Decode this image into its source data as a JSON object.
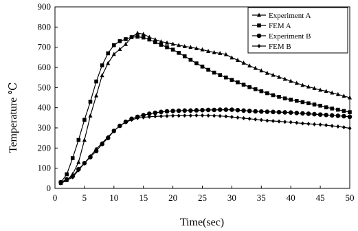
{
  "chart_data": {
    "type": "line",
    "title": "",
    "xlabel": "Time(sec)",
    "ylabel": "Temperature ℃",
    "xlim": [
      0,
      50
    ],
    "ylim": [
      0,
      900
    ],
    "xticks": [
      0,
      5,
      10,
      15,
      20,
      25,
      30,
      35,
      40,
      45,
      50
    ],
    "yticks": [
      0,
      100,
      200,
      300,
      400,
      500,
      600,
      700,
      800,
      900
    ],
    "grid": false,
    "legend_position": "top-right",
    "series": [
      {
        "name": "Experiment A",
        "marker": "triangle",
        "color": "#000000",
        "points": [
          [
            1,
            25
          ],
          [
            2,
            40
          ],
          [
            3,
            70
          ],
          [
            4,
            130
          ],
          [
            5,
            240
          ],
          [
            6,
            360
          ],
          [
            7,
            460
          ],
          [
            8,
            560
          ],
          [
            9,
            620
          ],
          [
            10,
            665
          ],
          [
            11,
            690
          ],
          [
            12,
            715
          ],
          [
            13,
            750
          ],
          [
            14,
            770
          ],
          [
            15,
            765
          ],
          [
            16,
            750
          ],
          [
            17,
            738
          ],
          [
            18,
            728
          ],
          [
            19,
            722
          ],
          [
            20,
            716
          ],
          [
            21,
            710
          ],
          [
            22,
            704
          ],
          [
            23,
            700
          ],
          [
            24,
            694
          ],
          [
            25,
            688
          ],
          [
            26,
            680
          ],
          [
            27,
            674
          ],
          [
            28,
            670
          ],
          [
            29,
            664
          ],
          [
            30,
            648
          ],
          [
            31,
            636
          ],
          [
            32,
            622
          ],
          [
            33,
            608
          ],
          [
            34,
            596
          ],
          [
            35,
            584
          ],
          [
            36,
            572
          ],
          [
            37,
            562
          ],
          [
            38,
            552
          ],
          [
            39,
            542
          ],
          [
            40,
            532
          ],
          [
            41,
            522
          ],
          [
            42,
            512
          ],
          [
            43,
            504
          ],
          [
            44,
            496
          ],
          [
            45,
            488
          ],
          [
            46,
            482
          ],
          [
            47,
            474
          ],
          [
            48,
            466
          ],
          [
            49,
            458
          ],
          [
            50,
            450
          ]
        ]
      },
      {
        "name": "FEM A",
        "marker": "square",
        "color": "#000000",
        "points": [
          [
            1,
            30
          ],
          [
            2,
            70
          ],
          [
            3,
            150
          ],
          [
            4,
            240
          ],
          [
            5,
            340
          ],
          [
            6,
            430
          ],
          [
            7,
            530
          ],
          [
            8,
            610
          ],
          [
            9,
            670
          ],
          [
            10,
            710
          ],
          [
            11,
            730
          ],
          [
            12,
            740
          ],
          [
            13,
            750
          ],
          [
            14,
            752
          ],
          [
            15,
            748
          ],
          [
            16,
            738
          ],
          [
            17,
            725
          ],
          [
            18,
            712
          ],
          [
            19,
            700
          ],
          [
            20,
            688
          ],
          [
            21,
            672
          ],
          [
            22,
            655
          ],
          [
            23,
            638
          ],
          [
            24,
            620
          ],
          [
            25,
            604
          ],
          [
            26,
            588
          ],
          [
            27,
            574
          ],
          [
            28,
            562
          ],
          [
            29,
            550
          ],
          [
            30,
            538
          ],
          [
            31,
            526
          ],
          [
            32,
            514
          ],
          [
            33,
            502
          ],
          [
            34,
            492
          ],
          [
            35,
            482
          ],
          [
            36,
            472
          ],
          [
            37,
            462
          ],
          [
            38,
            454
          ],
          [
            39,
            446
          ],
          [
            40,
            440
          ],
          [
            41,
            434
          ],
          [
            42,
            428
          ],
          [
            43,
            422
          ],
          [
            44,
            416
          ],
          [
            45,
            410
          ],
          [
            46,
            402
          ],
          [
            47,
            396
          ],
          [
            48,
            390
          ],
          [
            49,
            384
          ],
          [
            50,
            378
          ]
        ]
      },
      {
        "name": "Experiment B",
        "marker": "circle",
        "color": "#000000",
        "points": [
          [
            1,
            30
          ],
          [
            2,
            45
          ],
          [
            3,
            60
          ],
          [
            4,
            95
          ],
          [
            5,
            125
          ],
          [
            6,
            155
          ],
          [
            7,
            185
          ],
          [
            8,
            220
          ],
          [
            9,
            250
          ],
          [
            10,
            285
          ],
          [
            11,
            310
          ],
          [
            12,
            330
          ],
          [
            13,
            345
          ],
          [
            14,
            355
          ],
          [
            15,
            363
          ],
          [
            16,
            370
          ],
          [
            17,
            375
          ],
          [
            18,
            379
          ],
          [
            19,
            382
          ],
          [
            20,
            384
          ],
          [
            21,
            385
          ],
          [
            22,
            386
          ],
          [
            23,
            386
          ],
          [
            24,
            387
          ],
          [
            25,
            388
          ],
          [
            26,
            389
          ],
          [
            27,
            389
          ],
          [
            28,
            390
          ],
          [
            29,
            390
          ],
          [
            30,
            390
          ],
          [
            31,
            388
          ],
          [
            32,
            386
          ],
          [
            33,
            384
          ],
          [
            34,
            382
          ],
          [
            35,
            381
          ],
          [
            36,
            380
          ],
          [
            37,
            379
          ],
          [
            38,
            378
          ],
          [
            39,
            377
          ],
          [
            40,
            376
          ],
          [
            41,
            374
          ],
          [
            42,
            372
          ],
          [
            43,
            370
          ],
          [
            44,
            368
          ],
          [
            45,
            366
          ],
          [
            46,
            364
          ],
          [
            47,
            362
          ],
          [
            48,
            360
          ],
          [
            49,
            358
          ],
          [
            50,
            355
          ]
        ]
      },
      {
        "name": "FEM B",
        "marker": "diamond",
        "color": "#000000",
        "points": [
          [
            1,
            25
          ],
          [
            2,
            40
          ],
          [
            3,
            55
          ],
          [
            4,
            90
          ],
          [
            5,
            125
          ],
          [
            6,
            160
          ],
          [
            7,
            195
          ],
          [
            8,
            225
          ],
          [
            9,
            255
          ],
          [
            10,
            285
          ],
          [
            11,
            310
          ],
          [
            12,
            328
          ],
          [
            13,
            340
          ],
          [
            14,
            348
          ],
          [
            15,
            352
          ],
          [
            16,
            355
          ],
          [
            17,
            357
          ],
          [
            18,
            358
          ],
          [
            19,
            359
          ],
          [
            20,
            360
          ],
          [
            21,
            360
          ],
          [
            22,
            361
          ],
          [
            23,
            361
          ],
          [
            24,
            362
          ],
          [
            25,
            362
          ],
          [
            26,
            361
          ],
          [
            27,
            360
          ],
          [
            28,
            359
          ],
          [
            29,
            357
          ],
          [
            30,
            354
          ],
          [
            31,
            351
          ],
          [
            32,
            348
          ],
          [
            33,
            345
          ],
          [
            34,
            342
          ],
          [
            35,
            339
          ],
          [
            36,
            336
          ],
          [
            37,
            334
          ],
          [
            38,
            332
          ],
          [
            39,
            330
          ],
          [
            40,
            328
          ],
          [
            41,
            325
          ],
          [
            42,
            322
          ],
          [
            43,
            320
          ],
          [
            44,
            318
          ],
          [
            45,
            316
          ],
          [
            46,
            313
          ],
          [
            47,
            310
          ],
          [
            48,
            307
          ],
          [
            49,
            303
          ],
          [
            50,
            298
          ]
        ]
      }
    ]
  }
}
